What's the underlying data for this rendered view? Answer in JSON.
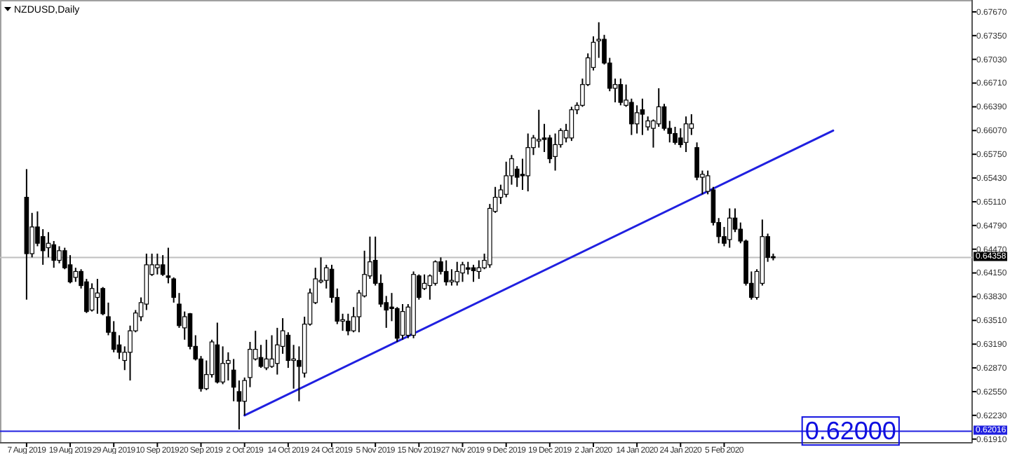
{
  "chart_data": {
    "type": "candlestick",
    "title": "NZDUSD,Daily",
    "categories": [
      "7 Aug 2019",
      null,
      null,
      null,
      null,
      null,
      null,
      null,
      "19 Aug 2019",
      null,
      null,
      null,
      null,
      null,
      null,
      null,
      "29 Aug 2019",
      null,
      null,
      null,
      null,
      null,
      null,
      null,
      "10 Sep 2019",
      null,
      null,
      null,
      null,
      null,
      null,
      null,
      "20 Sep 2019",
      null,
      null,
      null,
      null,
      null,
      null,
      null,
      "2 Oct 2019",
      null,
      null,
      null,
      null,
      null,
      null,
      null,
      "14 Oct 2019",
      null,
      null,
      null,
      null,
      null,
      null,
      null,
      "24 Oct 2019",
      null,
      null,
      null,
      null,
      null,
      null,
      null,
      "5 Nov 2019",
      null,
      null,
      null,
      null,
      null,
      null,
      null,
      "15 Nov 2019",
      null,
      null,
      null,
      null,
      null,
      null,
      null,
      "27 Nov 2019",
      null,
      null,
      null,
      null,
      null,
      null,
      null,
      "9 Dec 2019",
      null,
      null,
      null,
      null,
      null,
      null,
      null,
      "19 Dec 2019",
      null,
      null,
      null,
      null,
      null,
      null,
      null,
      "2 Jan 2020",
      null,
      null,
      null,
      null,
      null,
      null,
      null,
      "14 Jan 2020",
      null,
      null,
      null,
      null,
      null,
      null,
      null,
      "24 Jan 2020",
      null,
      null,
      null,
      null,
      null,
      null,
      null,
      "5 Feb 2020",
      null,
      null,
      null,
      null,
      null,
      null,
      null,
      null,
      null,
      null,
      null,
      null,
      null,
      null,
      null,
      null,
      null,
      null,
      null,
      null,
      null,
      null,
      null,
      null,
      null,
      null,
      null,
      null,
      null,
      null,
      null,
      null,
      null,
      null,
      null,
      null,
      null,
      null,
      null,
      null,
      null,
      null,
      null,
      null,
      null
    ],
    "ylim": [
      0.6186,
      0.6783
    ],
    "yticks": [
      {
        "value": 0.6767,
        "label": "0.67670"
      },
      {
        "value": 0.6735,
        "label": "0.67350"
      },
      {
        "value": 0.6703,
        "label": "0.67030"
      },
      {
        "value": 0.6671,
        "label": "0.66710"
      },
      {
        "value": 0.6639,
        "label": "0.66390"
      },
      {
        "value": 0.6607,
        "label": "0.66070"
      },
      {
        "value": 0.6575,
        "label": "0.65750"
      },
      {
        "value": 0.6543,
        "label": "0.65430"
      },
      {
        "value": 0.6511,
        "label": "0.65110"
      },
      {
        "value": 0.6479,
        "label": "0.64790"
      },
      {
        "value": 0.6447,
        "label": "0.64470"
      },
      {
        "value": 0.6415,
        "label": "0.64150"
      },
      {
        "value": 0.6383,
        "label": "0.63830"
      },
      {
        "value": 0.6351,
        "label": "0.63510"
      },
      {
        "value": 0.6319,
        "label": "0.63190"
      },
      {
        "value": 0.6287,
        "label": "0.62870"
      },
      {
        "value": 0.6255,
        "label": "0.62550"
      },
      {
        "value": 0.6223,
        "label": "0.62230"
      },
      {
        "value": 0.6191,
        "label": "0.61910"
      }
    ],
    "ref_lines": [
      {
        "axis": "y",
        "value": 0.64358,
        "label": "0.64358",
        "color": "#c0c0c0"
      },
      {
        "axis": "y",
        "value": 0.62016,
        "label": "0.62016",
        "color": "#2020e0"
      }
    ],
    "annotations": [
      {
        "text": "0.62000",
        "y": 0.62
      }
    ],
    "series": [
      {
        "type": "line",
        "color": "#2020e0",
        "values": [
          null,
          null,
          null,
          null,
          null,
          null,
          null,
          null,
          null,
          null,
          null,
          null,
          null,
          null,
          null,
          null,
          null,
          null,
          null,
          null,
          null,
          null,
          null,
          null,
          null,
          null,
          null,
          null,
          null,
          null,
          null,
          null,
          null,
          null,
          null,
          null,
          null,
          null,
          null,
          null,
          0.6223,
          null,
          null,
          null,
          null,
          null,
          null,
          null,
          null,
          null,
          null,
          null,
          null,
          null,
          null,
          null,
          null,
          null,
          null,
          null,
          null,
          null,
          null,
          null,
          null,
          null,
          null,
          null,
          null,
          null,
          null,
          null,
          null,
          null,
          null,
          null,
          null,
          null,
          null,
          null,
          null,
          null,
          null,
          null,
          null,
          null,
          null,
          null,
          null,
          null,
          null,
          null,
          null,
          null,
          null,
          null,
          null,
          null,
          null,
          null,
          null,
          null,
          null,
          null,
          null,
          null,
          null,
          null,
          null,
          null,
          null,
          null,
          null,
          null,
          null,
          null,
          null,
          null,
          null,
          null,
          null,
          null,
          null,
          null,
          null,
          null,
          null,
          null,
          null,
          null,
          null,
          null,
          null,
          null,
          null,
          null,
          null,
          null,
          null,
          null,
          null,
          null,
          null,
          null,
          null,
          null,
          null,
          null,
          0.6607,
          null,
          null,
          null,
          null,
          null,
          null,
          null,
          null,
          null,
          null,
          null,
          null,
          null,
          null,
          null,
          null,
          null,
          null,
          null,
          null,
          null,
          null,
          null,
          null,
          null
        ]
      },
      {
        "ohlc": [
          [
            0.6517,
            0.6555,
            0.6379,
            0.6441
          ],
          [
            0.6441,
            0.6496,
            0.6436,
            0.6477
          ],
          [
            0.6477,
            0.6498,
            0.6451,
            0.6455
          ],
          [
            0.6464,
            0.6474,
            0.6426,
            0.6445
          ],
          [
            0.6449,
            0.647,
            0.6436,
            0.6455
          ],
          [
            0.6453,
            0.6458,
            0.6422,
            0.6432
          ],
          [
            0.6432,
            0.6451,
            0.6428,
            0.6445
          ],
          [
            0.6445,
            0.6449,
            0.642,
            0.6422
          ],
          [
            0.6426,
            0.6439,
            0.6401,
            0.6403
          ],
          [
            0.6409,
            0.6422,
            0.6403,
            0.6417
          ],
          [
            0.6417,
            0.642,
            0.6394,
            0.6398
          ],
          [
            0.6403,
            0.6407,
            0.6361,
            0.6363
          ],
          [
            0.6365,
            0.6401,
            0.6363,
            0.6394
          ],
          [
            0.6382,
            0.6407,
            0.636,
            0.6388
          ],
          [
            0.6394,
            0.6396,
            0.6358,
            0.636
          ],
          [
            0.6356,
            0.6375,
            0.6331,
            0.6335
          ],
          [
            0.6335,
            0.635,
            0.6308,
            0.6312
          ],
          [
            0.6318,
            0.6331,
            0.6299,
            0.6308
          ],
          [
            0.6297,
            0.6316,
            0.6284,
            0.6308
          ],
          [
            0.6308,
            0.6344,
            0.627,
            0.6337
          ],
          [
            0.6337,
            0.6365,
            0.6335,
            0.6361
          ],
          [
            0.6356,
            0.6382,
            0.635,
            0.6375
          ],
          [
            0.6373,
            0.6441,
            0.6365,
            0.6426
          ],
          [
            0.6413,
            0.6441,
            0.6411,
            0.6426
          ],
          [
            0.6422,
            0.6441,
            0.6413,
            0.6426
          ],
          [
            0.6426,
            0.6439,
            0.6411,
            0.6413
          ],
          [
            0.6411,
            0.6449,
            0.6401,
            0.6409
          ],
          [
            0.6407,
            0.6409,
            0.6375,
            0.6382
          ],
          [
            0.6373,
            0.6388,
            0.6341,
            0.6344
          ],
          [
            0.6341,
            0.6363,
            0.6325,
            0.6356
          ],
          [
            0.636,
            0.6361,
            0.6312,
            0.6316
          ],
          [
            0.6316,
            0.6331,
            0.6297,
            0.6299
          ],
          [
            0.6299,
            0.6303,
            0.6255,
            0.6259
          ],
          [
            0.6259,
            0.6297,
            0.6257,
            0.6278
          ],
          [
            0.6278,
            0.6325,
            0.6274,
            0.6322
          ],
          [
            0.6318,
            0.6348,
            0.6266,
            0.6268
          ],
          [
            0.6268,
            0.6316,
            0.6265,
            0.6293
          ],
          [
            0.6293,
            0.6308,
            0.627,
            0.6297
          ],
          [
            0.6284,
            0.6299,
            0.6242,
            0.6261
          ],
          [
            0.6255,
            0.627,
            0.6204,
            0.6242
          ],
          [
            0.6242,
            0.6274,
            0.6223,
            0.627
          ],
          [
            0.6274,
            0.6322,
            0.6261,
            0.6312
          ],
          [
            0.6299,
            0.6337,
            0.6297,
            0.6312
          ],
          [
            0.6301,
            0.6318,
            0.6287,
            0.6289
          ],
          [
            0.6287,
            0.6325,
            0.6284,
            0.6299
          ],
          [
            0.6289,
            0.6331,
            0.6287,
            0.6299
          ],
          [
            0.6293,
            0.6341,
            0.6278,
            0.6318
          ],
          [
            0.6316,
            0.6354,
            0.6306,
            0.6337
          ],
          [
            0.6331,
            0.6335,
            0.6287,
            0.6297
          ],
          [
            0.6297,
            0.6318,
            0.6259,
            0.6299
          ],
          [
            0.6297,
            0.6316,
            0.6242,
            0.6289
          ],
          [
            0.628,
            0.6356,
            0.6274,
            0.6346
          ],
          [
            0.6346,
            0.6394,
            0.6344,
            0.6388
          ],
          [
            0.6375,
            0.6422,
            0.6373,
            0.6407
          ],
          [
            0.6403,
            0.6436,
            0.6401,
            0.6405
          ],
          [
            0.6405,
            0.6426,
            0.6394,
            0.6422
          ],
          [
            0.642,
            0.6426,
            0.6375,
            0.6382
          ],
          [
            0.6382,
            0.6394,
            0.6346,
            0.635
          ],
          [
            0.635,
            0.636,
            0.6337,
            0.6352
          ],
          [
            0.635,
            0.636,
            0.6331,
            0.6337
          ],
          [
            0.6337,
            0.6369,
            0.6335,
            0.6356
          ],
          [
            0.6356,
            0.6392,
            0.6335,
            0.6388
          ],
          [
            0.6384,
            0.6445,
            0.6382,
            0.6413
          ],
          [
            0.6411,
            0.6464,
            0.6407,
            0.643
          ],
          [
            0.6432,
            0.6464,
            0.6398,
            0.6401
          ],
          [
            0.6401,
            0.6413,
            0.6369,
            0.6373
          ],
          [
            0.6375,
            0.6384,
            0.6341,
            0.6365
          ],
          [
            0.6369,
            0.6388,
            0.635,
            0.6367
          ],
          [
            0.6367,
            0.6369,
            0.6322,
            0.6327
          ],
          [
            0.6331,
            0.6373,
            0.6325,
            0.6363
          ],
          [
            0.6331,
            0.6373,
            0.6327,
            0.6369
          ],
          [
            0.6331,
            0.6417,
            0.6327,
            0.6413
          ],
          [
            0.6411,
            0.6413,
            0.6379,
            0.6382
          ],
          [
            0.6394,
            0.6413,
            0.6392,
            0.6401
          ],
          [
            0.6398,
            0.6413,
            0.6379,
            0.6411
          ],
          [
            0.6401,
            0.6432,
            0.6398,
            0.643
          ],
          [
            0.643,
            0.6436,
            0.6413,
            0.6417
          ],
          [
            0.6417,
            0.6432,
            0.6398,
            0.6403
          ],
          [
            0.6403,
            0.642,
            0.6398,
            0.6405
          ],
          [
            0.6403,
            0.643,
            0.6398,
            0.6417
          ],
          [
            0.6415,
            0.643,
            0.6403,
            0.6426
          ],
          [
            0.6422,
            0.643,
            0.6413,
            0.642
          ],
          [
            0.6422,
            0.6426,
            0.6403,
            0.6418
          ],
          [
            0.6417,
            0.6432,
            0.6407,
            0.6422
          ],
          [
            0.6422,
            0.6441,
            0.642,
            0.6432
          ],
          [
            0.6426,
            0.6508,
            0.6422,
            0.6502
          ],
          [
            0.6498,
            0.6531,
            0.6496,
            0.6517
          ],
          [
            0.6517,
            0.6534,
            0.6508,
            0.6527
          ],
          [
            0.6521,
            0.6565,
            0.6517,
            0.6546
          ],
          [
            0.6546,
            0.6574,
            0.6534,
            0.6569
          ],
          [
            0.6555,
            0.6559,
            0.6531,
            0.6544
          ],
          [
            0.6548,
            0.6569,
            0.6527,
            0.6546
          ],
          [
            0.6546,
            0.6603,
            0.6525,
            0.6584
          ],
          [
            0.6584,
            0.6601,
            0.6574,
            0.6597
          ],
          [
            0.6593,
            0.6635,
            0.6584,
            0.6595
          ],
          [
            0.6597,
            0.6616,
            0.6578,
            0.6595
          ],
          [
            0.6597,
            0.6601,
            0.6563,
            0.6569
          ],
          [
            0.6572,
            0.6603,
            0.6553,
            0.6588
          ],
          [
            0.6588,
            0.661,
            0.6584,
            0.6607
          ],
          [
            0.6597,
            0.6616,
            0.6591,
            0.6607
          ],
          [
            0.6597,
            0.6639,
            0.6593,
            0.6635
          ],
          [
            0.6635,
            0.6645,
            0.6629,
            0.6641
          ],
          [
            0.6641,
            0.6677,
            0.6639,
            0.6669
          ],
          [
            0.6669,
            0.6711,
            0.6667,
            0.6705
          ],
          [
            0.6692,
            0.6734,
            0.6688,
            0.6726
          ],
          [
            0.6728,
            0.6753,
            0.6705,
            0.673
          ],
          [
            0.673,
            0.6736,
            0.6696,
            0.6698
          ],
          [
            0.6698,
            0.6705,
            0.666,
            0.6664
          ],
          [
            0.6664,
            0.6677,
            0.6645,
            0.6669
          ],
          [
            0.6669,
            0.6677,
            0.6641,
            0.6645
          ],
          [
            0.6641,
            0.6669,
            0.6639,
            0.6648
          ],
          [
            0.6645,
            0.665,
            0.6601,
            0.6616
          ],
          [
            0.6616,
            0.6641,
            0.6603,
            0.6631
          ],
          [
            0.6635,
            0.665,
            0.6601,
            0.6629
          ],
          [
            0.6612,
            0.6626,
            0.6607,
            0.662
          ],
          [
            0.661,
            0.6622,
            0.6584,
            0.662
          ],
          [
            0.6616,
            0.6664,
            0.6612,
            0.6639
          ],
          [
            0.6639,
            0.6643,
            0.6607,
            0.661
          ],
          [
            0.661,
            0.662,
            0.6591,
            0.6603
          ],
          [
            0.6603,
            0.6612,
            0.6588,
            0.6591
          ],
          [
            0.6597,
            0.661,
            0.6584,
            0.6588
          ],
          [
            0.6591,
            0.6626,
            0.6578,
            0.6616
          ],
          [
            0.661,
            0.6629,
            0.6601,
            0.6616
          ],
          [
            0.6584,
            0.6591,
            0.654,
            0.6544
          ],
          [
            0.6544,
            0.6553,
            0.6521,
            0.6548
          ],
          [
            0.6525,
            0.6553,
            0.6521,
            0.6546
          ],
          [
            0.6527,
            0.6531,
            0.6479,
            0.6483
          ],
          [
            0.6483,
            0.6489,
            0.6455,
            0.6464
          ],
          [
            0.6464,
            0.6477,
            0.6451,
            0.6455
          ],
          [
            0.646,
            0.6502,
            0.6449,
            0.6489
          ],
          [
            0.6489,
            0.6502,
            0.647,
            0.6474
          ],
          [
            0.6474,
            0.6483,
            0.6455,
            0.6458
          ],
          [
            0.6458,
            0.646,
            0.6398,
            0.6401
          ],
          [
            0.6401,
            0.6417,
            0.6379,
            0.6382
          ],
          [
            0.6382,
            0.642,
            0.6379,
            0.6417
          ],
          [
            0.6401,
            0.6487,
            0.6398,
            0.6464
          ],
          [
            0.6464,
            0.6468,
            0.643,
            0.6436
          ],
          [
            0.6437,
            0.6441,
            0.6432,
            0.64358
          ],
          null,
          null,
          null,
          null,
          null,
          null,
          null,
          null,
          null,
          null,
          null,
          null,
          null,
          null,
          null,
          null,
          null,
          null,
          null,
          null,
          null,
          null,
          null,
          null,
          null,
          null,
          null,
          null,
          null,
          null,
          null,
          null,
          null,
          null,
          null,
          null
        ]
      }
    ]
  }
}
